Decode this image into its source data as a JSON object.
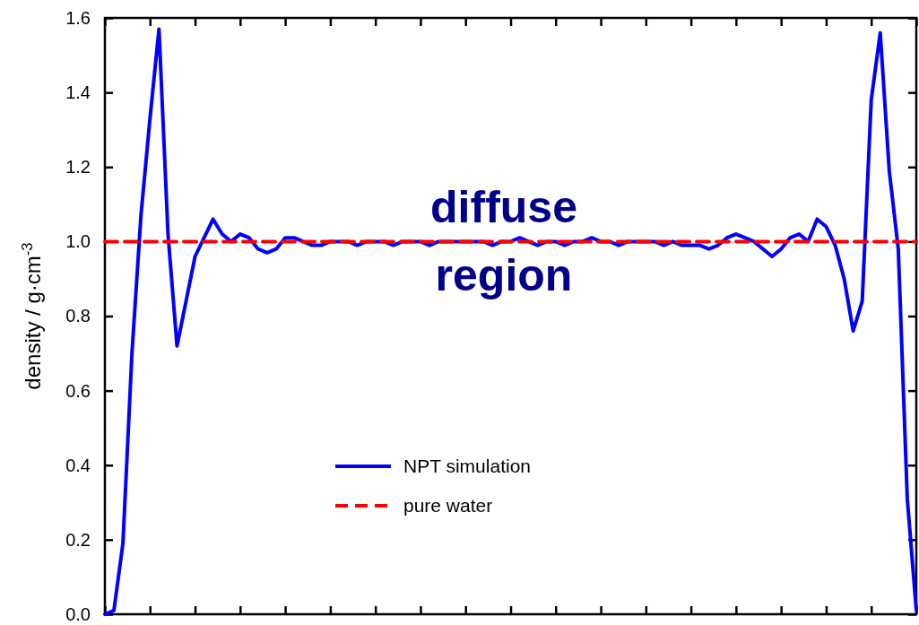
{
  "chart_data": {
    "type": "line",
    "ylabel": "density / g·cm$^{-3}$",
    "annotations": [
      "diffuse region"
    ],
    "categories": [
      null,
      null,
      null,
      null,
      null,
      null,
      null,
      null,
      null,
      null,
      null,
      null,
      null,
      null,
      null,
      null,
      null,
      null,
      null,
      null,
      null,
      null,
      null,
      null,
      null,
      null,
      null,
      null,
      null,
      null,
      null,
      null,
      null,
      null,
      null,
      null,
      null,
      null,
      null,
      null,
      null,
      null,
      null,
      null,
      null,
      null,
      null,
      null,
      null,
      null,
      null,
      null,
      null,
      null,
      null,
      null,
      null,
      null,
      null,
      null,
      null,
      null,
      null,
      null,
      null,
      null,
      null,
      null,
      null,
      null,
      null,
      null,
      null,
      null,
      null,
      null,
      null,
      null,
      null,
      null,
      null,
      null,
      null,
      null,
      null,
      null,
      null,
      null,
      null,
      null,
      null
    ],
    "series": [
      {
        "name": "NPT simulation",
        "color": "#0000ff",
        "line_style": "solid",
        "values": [
          0.0,
          0.01,
          0.19,
          0.7,
          1.07,
          1.33,
          1.57,
          1.02,
          0.72,
          0.84,
          0.96,
          1.01,
          1.06,
          1.02,
          1.0,
          1.02,
          1.01,
          0.98,
          0.97,
          0.98,
          1.01,
          1.01,
          1.0,
          0.99,
          0.99,
          1.0,
          1.0,
          1.0,
          0.99,
          1.0,
          1.0,
          1.0,
          0.99,
          1.0,
          1.0,
          1.0,
          0.99,
          1.0,
          1.0,
          1.0,
          1.0,
          1.0,
          1.0,
          0.99,
          1.0,
          1.0,
          1.01,
          1.0,
          0.99,
          1.0,
          1.0,
          0.99,
          1.0,
          1.0,
          1.01,
          1.0,
          1.0,
          0.99,
          1.0,
          1.0,
          1.0,
          1.0,
          0.99,
          1.0,
          0.99,
          0.99,
          0.99,
          0.98,
          0.99,
          1.01,
          1.02,
          1.01,
          1.0,
          0.98,
          0.96,
          0.98,
          1.01,
          1.02,
          1.0,
          1.06,
          1.04,
          0.99,
          0.9,
          0.76,
          0.84,
          1.38,
          1.56,
          1.19,
          0.98,
          0.31,
          0.01
        ]
      },
      {
        "name": "pure water",
        "color": "#ff0000",
        "line_style": "dashed",
        "values": [
          1,
          1,
          1,
          1,
          1,
          1,
          1,
          1,
          1,
          1,
          1,
          1,
          1,
          1,
          1,
          1,
          1,
          1,
          1,
          1,
          1,
          1,
          1,
          1,
          1,
          1,
          1,
          1,
          1,
          1,
          1,
          1,
          1,
          1,
          1,
          1,
          1,
          1,
          1,
          1,
          1,
          1,
          1,
          1,
          1,
          1,
          1,
          1,
          1,
          1,
          1,
          1,
          1,
          1,
          1,
          1,
          1,
          1,
          1,
          1,
          1,
          1,
          1,
          1,
          1,
          1,
          1,
          1,
          1,
          1,
          1,
          1,
          1,
          1,
          1,
          1,
          1,
          1,
          1,
          1,
          1,
          1,
          1,
          1,
          1,
          1,
          1,
          1,
          1,
          1,
          1
        ]
      }
    ],
    "ylim": [
      0,
      1.6
    ],
    "yticks": [
      {
        "value": 0,
        "label": "0.0"
      },
      {
        "value": 0.2,
        "label": "0.2"
      },
      {
        "value": 0.4,
        "label": "0.4"
      },
      {
        "value": 0.6,
        "label": "0.6"
      },
      {
        "value": 0.8,
        "label": "0.8"
      },
      {
        "value": 1,
        "label": "1.0"
      },
      {
        "value": 1.2,
        "label": "1.2"
      },
      {
        "value": 1.4,
        "label": "1.4"
      },
      {
        "value": 1.6,
        "label": "1.6"
      }
    ],
    "tick_labels": "y",
    "grid": false,
    "legend": "bottom",
    "marker": "none"
  }
}
